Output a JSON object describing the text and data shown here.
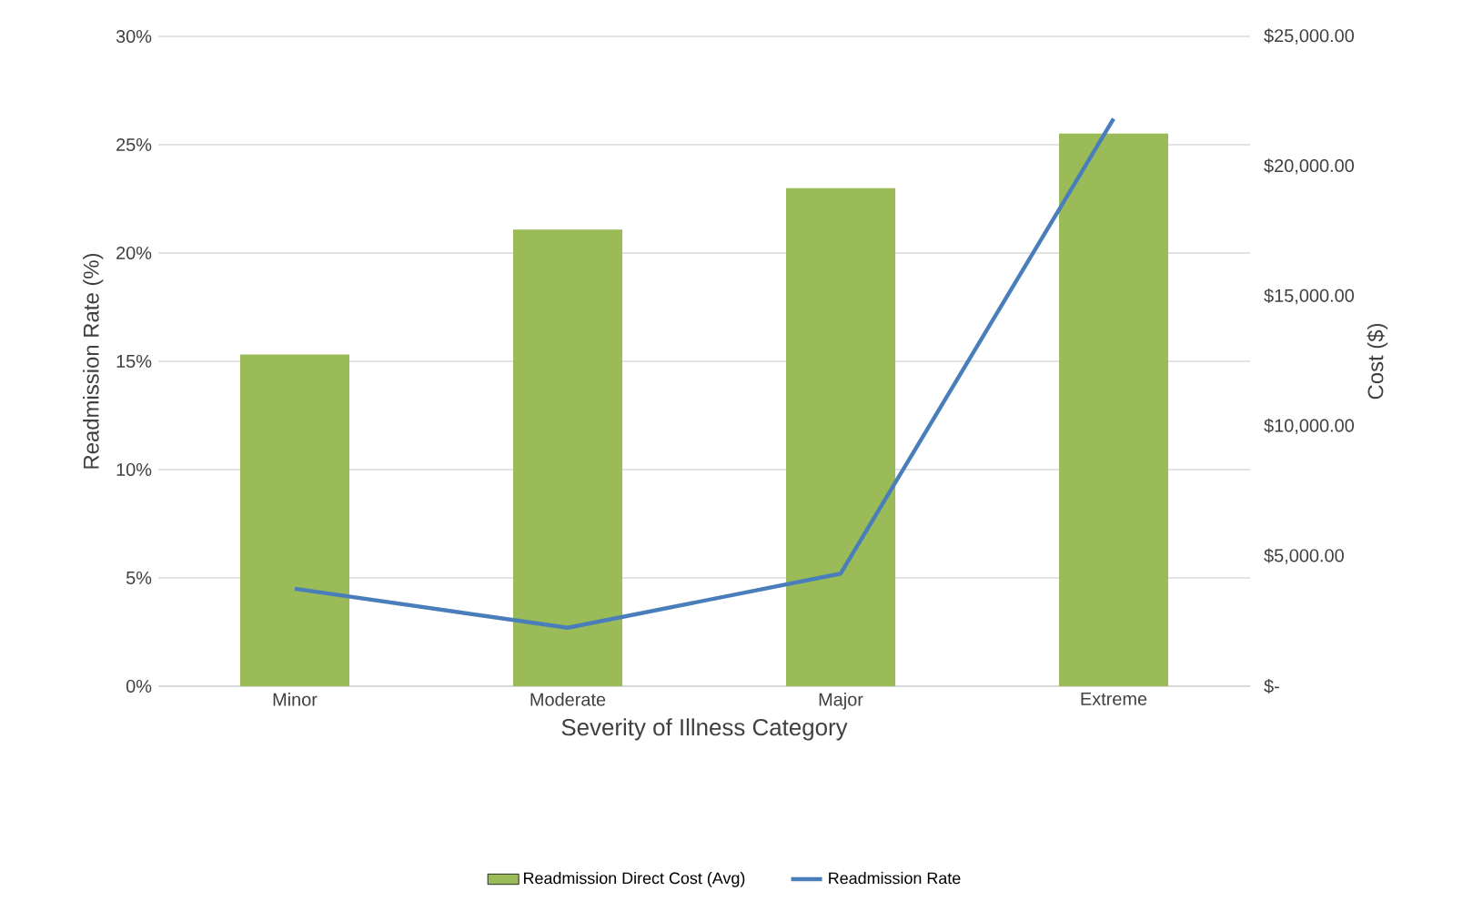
{
  "chart_data": {
    "type": "bar",
    "categories": [
      "Minor",
      "Moderate",
      "Major",
      "Extreme"
    ],
    "xlabel": "Severity of Illness Category",
    "ylabel": "Readmission Rate (%)",
    "y2label": "Cost ($)",
    "series": [
      {
        "name": "Readmission Direct Cost (Avg)",
        "axis": "y2",
        "color": "#9bbb59",
        "values": [
          12760,
          17570,
          19160,
          21260
        ]
      },
      {
        "name": "Readmission Rate",
        "type": "line",
        "color": "#4a7ebb",
        "values": [
          4.5,
          2.7,
          5.2,
          26.2
        ]
      }
    ],
    "ylim": [
      0,
      30
    ],
    "yticks": [
      {
        "value": 0,
        "label": "0%"
      },
      {
        "value": 5,
        "label": "5%"
      },
      {
        "value": 10,
        "label": "10%"
      },
      {
        "value": 15,
        "label": "15%"
      },
      {
        "value": 20,
        "label": "20%"
      },
      {
        "value": 25,
        "label": "25%"
      },
      {
        "value": 30,
        "label": "30%"
      }
    ],
    "y2lim": [
      0,
      25000
    ],
    "y2ticks": [
      {
        "value": 0,
        "label": "$-"
      },
      {
        "value": 5000,
        "label": "$5,000.00"
      },
      {
        "value": 10000,
        "label": "$10,000.00"
      },
      {
        "value": 15000,
        "label": "$15,000.00"
      },
      {
        "value": 20000,
        "label": "$20,000.00"
      },
      {
        "value": 25000,
        "label": "$25,000.00"
      }
    ],
    "grid": "y",
    "legend": "bottom"
  }
}
